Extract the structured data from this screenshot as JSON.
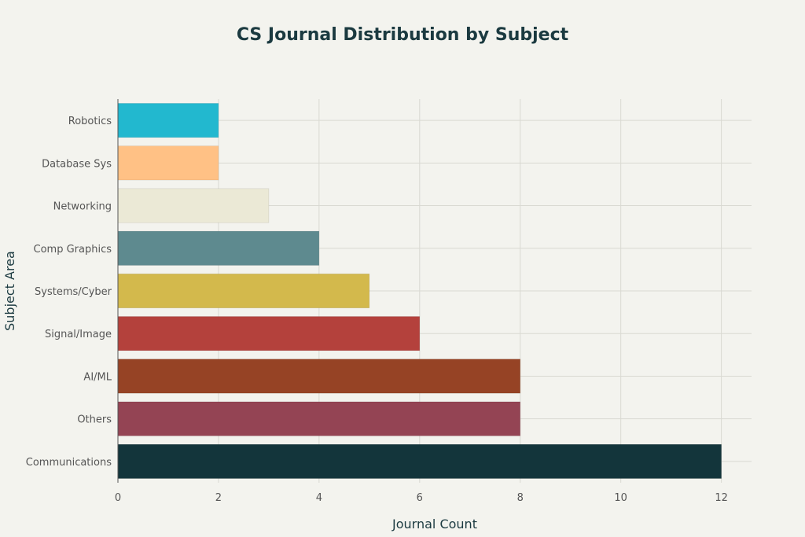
{
  "chart_data": {
    "type": "bar",
    "orientation": "horizontal",
    "title": "CS Journal Distribution by Subject",
    "xlabel": "Journal Count",
    "ylabel": "Subject Area",
    "xlim": [
      0,
      12.6
    ],
    "xticks": [
      0,
      2,
      4,
      6,
      8,
      10,
      12
    ],
    "grid": true,
    "categories": [
      "Robotics",
      "Database Sys",
      "Networking",
      "Comp Graphics",
      "Systems/Cyber",
      "Signal/Image",
      "AI/ML",
      "Others",
      "Communications"
    ],
    "values": [
      2,
      2,
      3,
      4,
      5,
      6,
      8,
      8,
      12
    ],
    "colors": [
      "#22b8cf",
      "#ffc185",
      "#ebe9d6",
      "#5e8a8f",
      "#d3b94c",
      "#b4413c",
      "#964325",
      "#944454",
      "#13353b"
    ]
  }
}
